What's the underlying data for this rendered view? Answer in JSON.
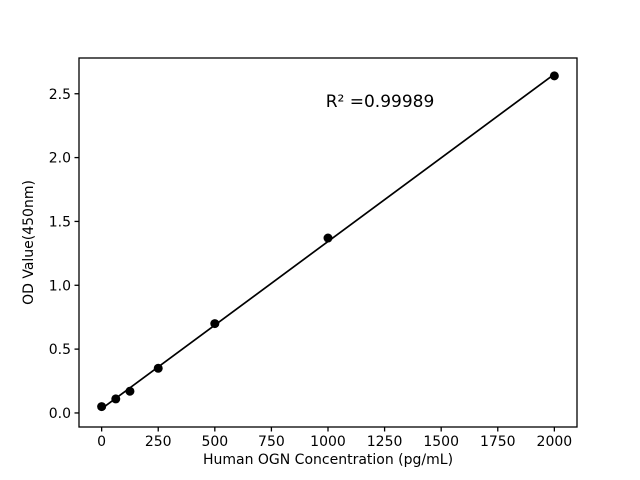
{
  "figure": {
    "background": "#ffffff"
  },
  "chart_data": {
    "type": "scatter",
    "title": "",
    "xlabel": "Human OGN Concentration (pg/mL)",
    "ylabel": "OD Value(450nm)",
    "annotation": "R² =0.99989",
    "series": [
      {
        "name": "standard-points",
        "x": [
          0,
          62.5,
          125,
          250,
          500,
          1000,
          2000
        ],
        "y": [
          0.05,
          0.11,
          0.17,
          0.35,
          0.7,
          1.37,
          2.64
        ]
      }
    ],
    "fit_line": {
      "x": [
        0,
        2000
      ],
      "y": [
        0.033,
        2.653
      ]
    },
    "xlim": [
      -100,
      2100
    ],
    "ylim": [
      -0.11,
      2.78
    ],
    "xticks": {
      "values": [
        0,
        250,
        500,
        750,
        1000,
        1250,
        1500,
        1750,
        2000
      ],
      "labels": [
        "0",
        "250",
        "500",
        "750",
        "1000",
        "1250",
        "1500",
        "1750",
        "2000"
      ]
    },
    "yticks": {
      "values": [
        0,
        0.5,
        1.0,
        1.5,
        2.0,
        2.5
      ],
      "labels": [
        "0.0",
        "0.5",
        "1.0",
        "1.5",
        "2.0",
        "2.5"
      ]
    },
    "grid": false,
    "legend": null,
    "marker_color": "#000000",
    "line_color": "#000000",
    "axis_color": "#000000",
    "text_color": "#000000"
  }
}
